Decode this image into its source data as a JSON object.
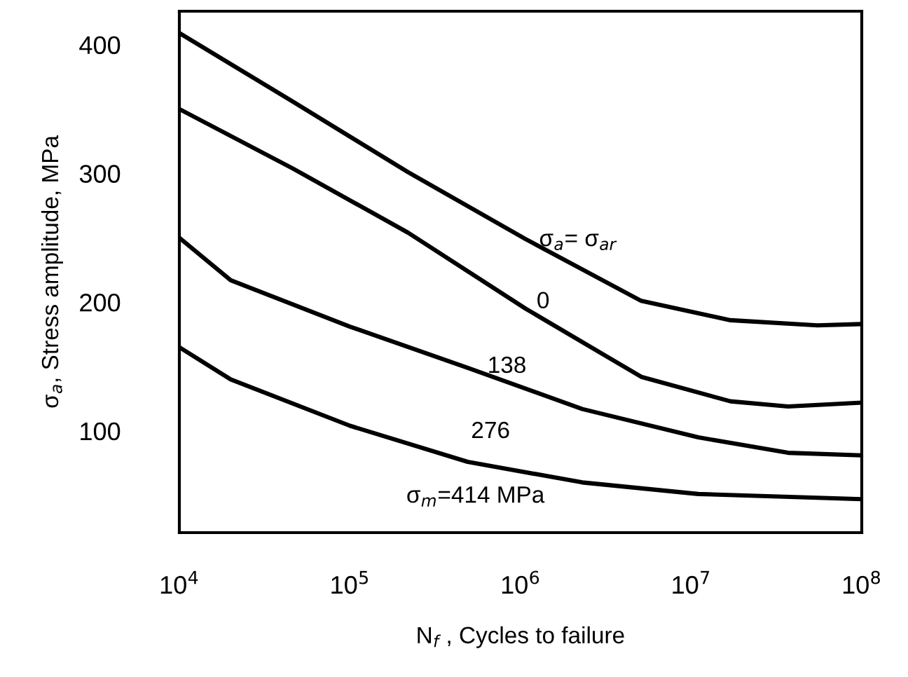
{
  "chart_data": {
    "type": "line",
    "xlabel": "N$_{f}$ , Cycles to failure",
    "ylabel": "σ$_{a}$, Stress amplitude, MPa",
    "log": "x",
    "xlim": [
      10000,
      100000000
    ],
    "xticks": [
      {
        "value": 10000,
        "label": "10$^{4}$"
      },
      {
        "value": 100000,
        "label": "10$^{5}$"
      },
      {
        "value": 1000000,
        "label": "10$^{6}$"
      },
      {
        "value": 10000000,
        "label": "10$^{7}$"
      },
      {
        "value": 100000000,
        "label": "10$^{8}$"
      }
    ],
    "ylim": [
      21,
      426
    ],
    "yticks": [
      100,
      200,
      300,
      400
    ],
    "grid": false,
    "legend": false,
    "marker": "none",
    "line_style": "solid",
    "series": [
      {
        "color": "#000000",
        "x": [
          10000,
          46000,
          219000,
          1070000,
          5100000,
          17000000,
          55000000,
          100000000
        ],
        "values": [
          409,
          356,
          301,
          249,
          201,
          186,
          182,
          183
        ]
      },
      {
        "color": "#000000",
        "x": [
          10000,
          46000,
          219000,
          1070000,
          5100000,
          17000000,
          37000000,
          100000000
        ],
        "values": [
          350,
          304,
          254,
          195,
          142,
          123,
          119,
          122
        ]
      },
      {
        "color": "#000000",
        "x": [
          10000,
          20000,
          100000,
          490000,
          2300000,
          11000000,
          37000000,
          100000000
        ],
        "values": [
          250,
          217,
          181,
          149,
          117,
          95,
          83,
          81
        ]
      },
      {
        "color": "#000000",
        "x": [
          10000,
          20000,
          100000,
          490000,
          2300000,
          11000000,
          100000000
        ],
        "values": [
          165,
          140,
          104,
          76,
          60,
          51,
          47
        ]
      }
    ],
    "annotations": [
      "σ$_{a}$= σ$_{ar}$",
      "0",
      "138",
      "276",
      "σ$_{m}$=414 MPa"
    ]
  }
}
